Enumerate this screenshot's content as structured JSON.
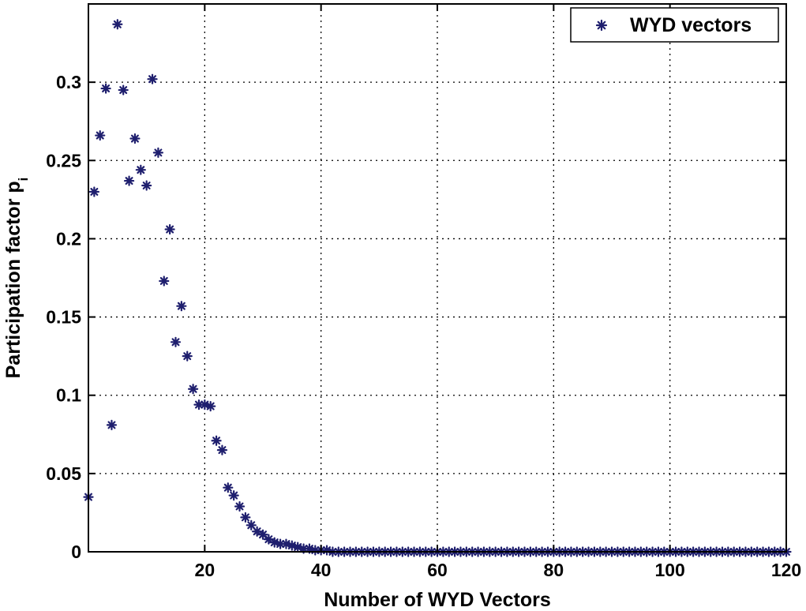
{
  "chart_data": {
    "type": "scatter",
    "xlabel": "Number of WYD Vectors",
    "ylabel": "Participation factor p",
    "ylabel_subscript": "i",
    "xlim": [
      0,
      120
    ],
    "ylim": [
      0,
      0.35
    ],
    "xticks": [
      20,
      40,
      60,
      80,
      100,
      120
    ],
    "yticks": [
      0,
      0.05,
      0.1,
      0.15,
      0.2,
      0.25,
      0.3
    ],
    "ytick_labels": [
      "0",
      "0.05",
      "0.1",
      "0.15",
      "0.2",
      "0.25",
      "0.3"
    ],
    "grid": true,
    "legend_position": "top-right",
    "marker_color": "#1f1f6e",
    "series": [
      {
        "name": "WYD vectors",
        "marker": "asterisk",
        "points": [
          [
            0,
            0.035
          ],
          [
            1,
            0.23
          ],
          [
            2,
            0.266
          ],
          [
            3,
            0.296
          ],
          [
            4,
            0.081
          ],
          [
            5,
            0.337
          ],
          [
            6,
            0.295
          ],
          [
            7,
            0.237
          ],
          [
            8,
            0.264
          ],
          [
            9,
            0.244
          ],
          [
            10,
            0.234
          ],
          [
            11,
            0.302
          ],
          [
            12,
            0.255
          ],
          [
            13,
            0.173
          ],
          [
            14,
            0.206
          ],
          [
            15,
            0.134
          ],
          [
            16,
            0.157
          ],
          [
            17,
            0.125
          ],
          [
            18,
            0.104
          ],
          [
            19,
            0.094
          ],
          [
            20,
            0.094
          ],
          [
            21,
            0.093
          ],
          [
            22,
            0.071
          ],
          [
            23,
            0.065
          ],
          [
            24,
            0.041
          ],
          [
            25,
            0.036
          ],
          [
            26,
            0.029
          ],
          [
            27,
            0.022
          ],
          [
            28,
            0.017
          ],
          [
            29,
            0.013
          ],
          [
            30,
            0.011
          ],
          [
            31,
            0.008
          ],
          [
            32,
            0.006
          ],
          [
            33,
            0.005
          ],
          [
            34,
            0.005
          ],
          [
            35,
            0.004
          ],
          [
            36,
            0.003
          ],
          [
            37,
            0.002
          ],
          [
            38,
            0.002
          ],
          [
            39,
            0.001
          ],
          [
            40,
            0.001
          ],
          [
            41,
            0.001
          ],
          [
            42,
            0.0
          ],
          [
            43,
            0.0
          ],
          [
            44,
            0.0
          ],
          [
            45,
            0.0
          ],
          [
            46,
            0.0
          ],
          [
            47,
            0.0
          ],
          [
            48,
            0.0
          ],
          [
            49,
            0.0
          ],
          [
            50,
            0.0
          ],
          [
            51,
            0.0
          ],
          [
            52,
            0.0
          ],
          [
            53,
            0.0
          ],
          [
            54,
            0.0
          ],
          [
            55,
            0.0
          ],
          [
            56,
            0.0
          ],
          [
            57,
            0.0
          ],
          [
            58,
            0.0
          ],
          [
            59,
            0.0
          ],
          [
            60,
            0.0
          ],
          [
            61,
            0.0
          ],
          [
            62,
            0.0
          ],
          [
            63,
            0.0
          ],
          [
            64,
            0.0
          ],
          [
            65,
            0.0
          ],
          [
            66,
            0.0
          ],
          [
            67,
            0.0
          ],
          [
            68,
            0.0
          ],
          [
            69,
            0.0
          ],
          [
            70,
            0.0
          ],
          [
            71,
            0.0
          ],
          [
            72,
            0.0
          ],
          [
            73,
            0.0
          ],
          [
            74,
            0.0
          ],
          [
            75,
            0.0
          ],
          [
            76,
            0.0
          ],
          [
            77,
            0.0
          ],
          [
            78,
            0.0
          ],
          [
            79,
            0.0
          ],
          [
            80,
            0.0
          ],
          [
            81,
            0.0
          ],
          [
            82,
            0.0
          ],
          [
            83,
            0.0
          ],
          [
            84,
            0.0
          ],
          [
            85,
            0.0
          ],
          [
            86,
            0.0
          ],
          [
            87,
            0.0
          ],
          [
            88,
            0.0
          ],
          [
            89,
            0.0
          ],
          [
            90,
            0.0
          ],
          [
            91,
            0.0
          ],
          [
            92,
            0.0
          ],
          [
            93,
            0.0
          ],
          [
            94,
            0.0
          ],
          [
            95,
            0.0
          ],
          [
            96,
            0.0
          ],
          [
            97,
            0.0
          ],
          [
            98,
            0.0
          ],
          [
            99,
            0.0
          ],
          [
            100,
            0.0
          ],
          [
            101,
            0.0
          ],
          [
            102,
            0.0
          ],
          [
            103,
            0.0
          ],
          [
            104,
            0.0
          ],
          [
            105,
            0.0
          ],
          [
            106,
            0.0
          ],
          [
            107,
            0.0
          ],
          [
            108,
            0.0
          ],
          [
            109,
            0.0
          ],
          [
            110,
            0.0
          ],
          [
            111,
            0.0
          ],
          [
            112,
            0.0
          ],
          [
            113,
            0.0
          ],
          [
            114,
            0.0
          ],
          [
            115,
            0.0
          ],
          [
            116,
            0.0
          ],
          [
            117,
            0.0
          ],
          [
            118,
            0.0
          ],
          [
            119,
            0.0
          ],
          [
            120,
            0.0
          ]
        ]
      }
    ]
  }
}
